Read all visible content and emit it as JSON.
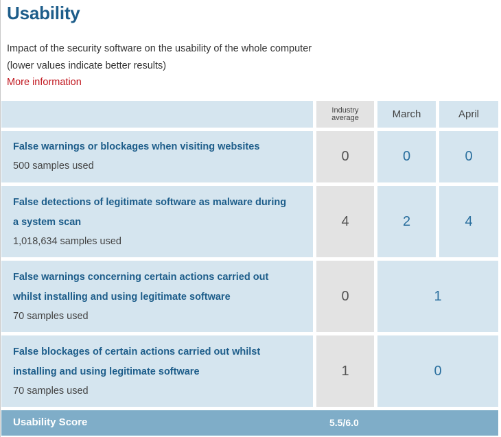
{
  "title": "Usability",
  "description": {
    "line1": "Impact of the security software on the usability of the whole computer",
    "line2": "(lower values indicate better results)"
  },
  "more_info_link": "More information",
  "columns": {
    "industry_average": "Industry\naverage",
    "march": "March",
    "april": "April"
  },
  "rows": [
    {
      "title": "False warnings or blockages when visiting websites",
      "samples": "500 samples used",
      "industry_average": "0",
      "march": "0",
      "april": "0"
    },
    {
      "title_line1": "False detections of legitimate software as malware during",
      "title_line2": "a system scan",
      "samples": "1,018,634 samples used",
      "industry_average": "4",
      "march": "2",
      "april": "4"
    },
    {
      "title_line1": "False warnings concerning certain actions carried out",
      "title_line2": "whilst installing and using legitimate software",
      "samples": "70 samples used",
      "industry_average": "0",
      "combined": "1"
    },
    {
      "title_line1": "False blockages of certain actions carried out whilst",
      "title_line2": "installing and using legitimate software",
      "samples": "70 samples used",
      "industry_average": "1",
      "combined": "0"
    }
  ],
  "footer": {
    "label": "Usability Score",
    "score": "5.5/6.0"
  },
  "colors": {
    "title_blue": "#1d5d8a",
    "link_red": "#c0141c",
    "cell_blue": "#d5e5ef",
    "cell_grey": "#e3e3e3",
    "footer_blue": "#7fadc8"
  }
}
